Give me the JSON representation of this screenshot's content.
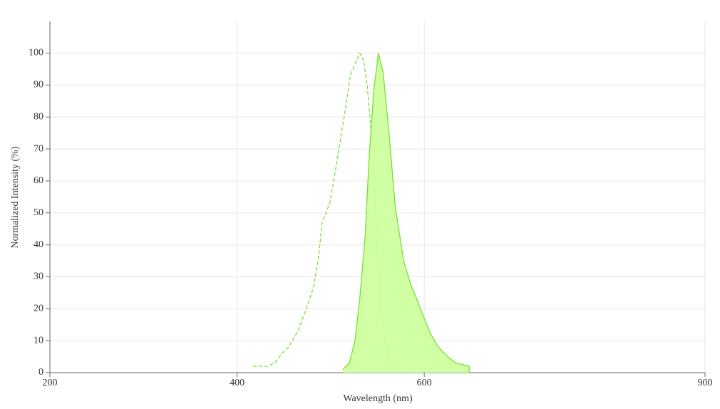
{
  "chart_data": {
    "type": "line",
    "x_label": "Wavelength (nm)",
    "y_label": "Normalized Intensity (%)",
    "xlim": [
      200,
      900
    ],
    "xticks": [
      200,
      400,
      600,
      900
    ],
    "ylim": [
      0,
      100
    ],
    "yticks": [
      0,
      10,
      20,
      30,
      40,
      50,
      60,
      70,
      80,
      90,
      100
    ],
    "grid": true,
    "series": [
      {
        "color": "#77e033",
        "style": "dashed",
        "fill": null,
        "x": [
          417,
          432,
          440,
          448,
          455,
          465,
          474,
          482,
          487,
          491,
          499,
          505,
          511,
          516,
          521,
          528,
          531,
          535,
          539,
          543,
          547,
          550,
          554,
          558,
          564,
          575
        ],
        "values": [
          2,
          2,
          3,
          6,
          8,
          13,
          20,
          27,
          36,
          47,
          53,
          63,
          74,
          83,
          93,
          98,
          100,
          98,
          90,
          76,
          59,
          36,
          21,
          10,
          3,
          0
        ]
      },
      {
        "color": "#77e033",
        "style": "solid",
        "fill": "#ccff99",
        "x": [
          513,
          520,
          526,
          531,
          537,
          541,
          546,
          551,
          556,
          562,
          569,
          578,
          585,
          592,
          600,
          607,
          615,
          625,
          634,
          648,
          648
        ],
        "values": [
          1,
          3,
          10,
          23,
          43,
          67,
          88,
          100,
          94,
          76,
          52,
          35,
          28,
          23,
          17,
          12,
          8,
          5,
          3,
          2,
          0
        ]
      }
    ]
  }
}
